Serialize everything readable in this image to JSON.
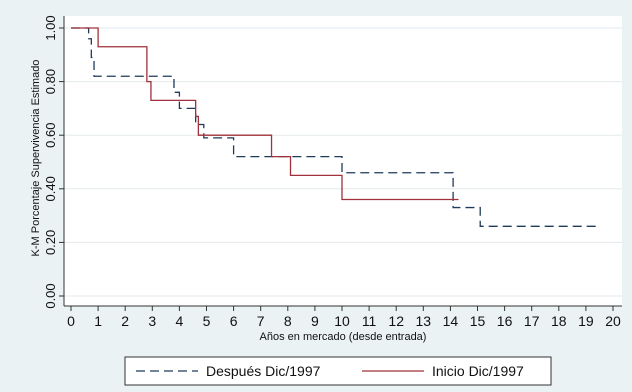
{
  "chart_data": {
    "type": "line",
    "step": true,
    "title": "",
    "xlabel": "Años en mercado (desde entrada)",
    "ylabel": "K-M Porcentaje Supervivencia Estimado",
    "xlim": [
      0,
      20
    ],
    "ylim": [
      0,
      1
    ],
    "xticks": [
      "0",
      "1",
      "2",
      "3",
      "4",
      "5",
      "6",
      "7",
      "8",
      "9",
      "10",
      "11",
      "12",
      "13",
      "14",
      "15",
      "16",
      "17",
      "18",
      "19",
      "20"
    ],
    "yticks": [
      "0.00",
      "0.20",
      "0.40",
      "0.60",
      "0.80",
      "1.00"
    ],
    "grid": "horizontal",
    "legend_position": "bottom",
    "series": [
      {
        "name": "Después Dic/1997",
        "color": "#1f3a5a",
        "dash": "dashed",
        "x": [
          0,
          0.65,
          0.75,
          0.85,
          2.8,
          3.8,
          4.0,
          4.6,
          4.9,
          6.0,
          7.3,
          10.0,
          14.1,
          15.1,
          19.5
        ],
        "y": [
          1.0,
          0.96,
          0.89,
          0.82,
          0.82,
          0.76,
          0.7,
          0.64,
          0.59,
          0.52,
          0.52,
          0.46,
          0.33,
          0.26,
          0.26
        ]
      },
      {
        "name": "Inicio Dic/1997",
        "color": "#a0303a",
        "dash": "solid",
        "x": [
          0,
          1.0,
          2.8,
          2.95,
          4.6,
          4.7,
          7.4,
          8.1,
          10.0,
          14.3
        ],
        "y": [
          1.0,
          0.93,
          0.8,
          0.73,
          0.67,
          0.6,
          0.52,
          0.45,
          0.36,
          0.36
        ]
      }
    ]
  }
}
